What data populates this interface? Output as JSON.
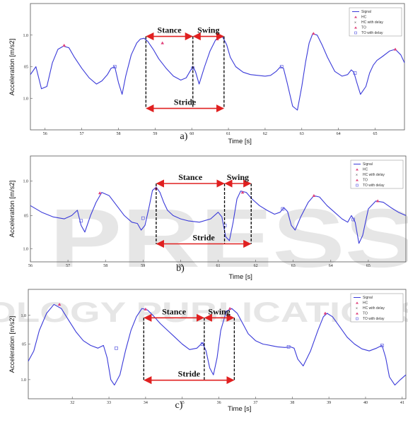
{
  "watermark": {
    "top": "PRESS",
    "bottom": "OLOGY PUBLICATIONS"
  },
  "chart_data": [
    {
      "type": "line",
      "panel_label": "a)",
      "xlabel": "Time [s]",
      "ylabel": "Acceleration [m/s2]",
      "xlim": [
        55.6,
        65.8
      ],
      "ylim": [
        0.93,
        1.09
      ],
      "xticks": [
        56,
        57,
        58,
        59,
        60,
        61,
        62,
        63,
        64,
        65
      ],
      "yticks": [
        {
          "v": 1.05,
          "t": "1.0"
        },
        {
          "v": 1.01,
          "t": "05"
        },
        {
          "v": 0.97,
          "t": "1.0"
        }
      ],
      "legend": [
        "Signal",
        "HC",
        "HC with delay",
        "TO",
        "TO with delay"
      ],
      "signal": {
        "x": [
          55.6,
          55.75,
          55.9,
          56.05,
          56.2,
          56.35,
          56.5,
          56.65,
          56.8,
          57.0,
          57.2,
          57.4,
          57.55,
          57.7,
          57.8,
          57.9,
          58.0,
          58.1,
          58.2,
          58.35,
          58.5,
          58.6,
          58.7,
          58.8,
          58.95,
          59.1,
          59.3,
          59.5,
          59.7,
          59.85,
          59.95,
          60.03,
          60.1,
          60.2,
          60.35,
          60.5,
          60.65,
          60.75,
          60.85,
          60.95,
          61.05,
          61.2,
          61.4,
          61.6,
          61.8,
          62.0,
          62.15,
          62.3,
          62.42,
          62.5,
          62.6,
          62.75,
          62.88,
          63.0,
          63.1,
          63.2,
          63.3,
          63.42,
          63.55,
          63.7,
          63.9,
          64.1,
          64.25,
          64.35,
          64.42,
          64.5,
          64.6,
          64.75,
          64.85,
          64.95,
          65.05,
          65.2,
          65.4,
          65.55,
          65.7,
          65.8
        ],
        "y": [
          1.0,
          1.01,
          0.982,
          0.985,
          1.015,
          1.032,
          1.036,
          1.034,
          1.022,
          1.008,
          0.996,
          0.988,
          0.992,
          1.0,
          1.008,
          1.01,
          0.99,
          0.975,
          0.998,
          1.025,
          1.04,
          1.045,
          1.046,
          1.042,
          1.032,
          1.02,
          1.008,
          0.998,
          0.993,
          0.996,
          1.004,
          1.01,
          1.004,
          0.988,
          1.01,
          1.03,
          1.044,
          1.048,
          1.047,
          1.038,
          1.022,
          1.01,
          1.003,
          1.0,
          0.999,
          0.998,
          0.999,
          1.004,
          1.01,
          1.008,
          0.99,
          0.96,
          0.955,
          0.985,
          1.015,
          1.04,
          1.052,
          1.05,
          1.038,
          1.022,
          1.004,
          0.998,
          1.0,
          1.006,
          1.003,
          0.99,
          0.975,
          0.985,
          1.002,
          1.012,
          1.018,
          1.023,
          1.03,
          1.032,
          1.025,
          1.015
        ]
      },
      "markers": {
        "hc": [
          [
            56.52,
            1.037
          ],
          [
            59.2,
            1.04
          ],
          [
            60.7,
            1.045
          ],
          [
            63.32,
            1.052
          ],
          [
            65.55,
            1.032
          ]
        ],
        "to": [
          [
            57.9,
            1.01
          ],
          [
            60.03,
            1.008
          ],
          [
            62.45,
            1.01
          ],
          [
            64.45,
            1.002
          ]
        ]
      },
      "annotations": {
        "stance": {
          "label": "Stance",
          "x1": 58.75,
          "x2": 60.03
        },
        "swing": {
          "label": "Swing",
          "x1": 60.03,
          "x2": 60.88
        },
        "stride": {
          "label": "Stride",
          "x1": 58.75,
          "x2": 60.88
        },
        "guides": [
          58.75,
          60.03,
          60.88
        ]
      }
    },
    {
      "type": "line",
      "panel_label": "b)",
      "xlabel": "Time [s]",
      "ylabel": "Acceleration [m/s2]",
      "xlim": [
        56.0,
        66.0
      ],
      "ylim": [
        0.93,
        1.09
      ],
      "xticks": [
        56,
        57,
        58,
        59,
        60,
        61,
        62,
        63,
        64,
        65
      ],
      "yticks": [
        {
          "v": 1.052,
          "t": "1.0"
        },
        {
          "v": 1.0,
          "t": "05"
        },
        {
          "v": 0.95,
          "t": "1.0"
        }
      ],
      "legend": [
        "Signal",
        "HC",
        "HC with delay",
        "TO",
        "TO with delay"
      ],
      "signal": {
        "x": [
          56.0,
          56.3,
          56.6,
          56.9,
          57.1,
          57.25,
          57.35,
          57.45,
          57.6,
          57.75,
          57.9,
          58.1,
          58.3,
          58.5,
          58.7,
          58.85,
          58.95,
          59.05,
          59.15,
          59.25,
          59.35,
          59.45,
          59.55,
          59.65,
          59.8,
          60.0,
          60.2,
          60.5,
          60.8,
          61.0,
          61.1,
          61.2,
          61.3,
          61.4,
          61.5,
          61.6,
          61.75,
          61.9,
          62.1,
          62.3,
          62.5,
          62.65,
          62.75,
          62.85,
          62.95,
          63.05,
          63.2,
          63.4,
          63.55,
          63.7,
          63.9,
          64.1,
          64.3,
          64.45,
          64.55,
          64.65,
          64.75,
          64.85,
          65.0,
          65.2,
          65.4,
          65.6,
          65.8,
          66.0
        ],
        "y": [
          1.015,
          1.005,
          0.998,
          0.995,
          1.0,
          1.008,
          0.985,
          0.975,
          1.0,
          1.02,
          1.035,
          1.03,
          1.015,
          1.0,
          0.99,
          0.988,
          0.978,
          0.985,
          1.01,
          1.038,
          1.043,
          1.035,
          1.02,
          1.008,
          1.0,
          0.995,
          0.992,
          0.99,
          0.995,
          1.005,
          0.998,
          0.968,
          0.962,
          0.99,
          1.025,
          1.037,
          1.035,
          1.025,
          1.015,
          1.008,
          1.002,
          1.005,
          1.012,
          1.006,
          0.985,
          0.978,
          0.998,
          1.02,
          1.03,
          1.028,
          1.015,
          1.005,
          0.995,
          0.99,
          1.0,
          0.99,
          0.958,
          0.97,
          1.01,
          1.022,
          1.02,
          1.012,
          1.005,
          1.0
        ]
      },
      "markers": {
        "hc": [
          [
            57.85,
            1.034
          ],
          [
            59.35,
            1.041
          ],
          [
            61.65,
            1.035
          ],
          [
            63.55,
            1.03
          ],
          [
            65.25,
            1.022
          ]
        ],
        "to": [
          [
            57.35,
            0.992
          ],
          [
            59.0,
            0.996
          ],
          [
            61.18,
            0.985
          ],
          [
            62.72,
            1.01
          ],
          [
            64.6,
            0.994
          ]
        ]
      },
      "annotations": {
        "stance": {
          "label": "Stance",
          "x1": 59.35,
          "x2": 61.17
        },
        "swing": {
          "label": "Swing",
          "x1": 61.17,
          "x2": 61.88
        },
        "stride": {
          "label": "Stride",
          "x1": 59.35,
          "x2": 61.88
        },
        "guides": [
          59.35,
          61.17,
          61.88
        ]
      }
    },
    {
      "type": "line",
      "panel_label": "c)",
      "xlabel": "Time [s]",
      "ylabel": "Acceleration [m/s2]",
      "xlim": [
        30.8,
        41.1
      ],
      "ylim": [
        0.93,
        1.09
      ],
      "xticks": [
        32,
        33,
        34,
        35,
        36,
        37,
        38,
        39,
        40,
        41
      ],
      "yticks": [
        {
          "v": 1.052,
          "t": "1.0"
        },
        {
          "v": 1.01,
          "t": "05"
        },
        {
          "v": 0.958,
          "t": "1.0"
        }
      ],
      "legend": [
        "Signal",
        "HC",
        "HC with delay",
        "TO",
        "TO with delay"
      ],
      "signal": {
        "x": [
          30.8,
          30.95,
          31.1,
          31.3,
          31.5,
          31.7,
          31.9,
          32.1,
          32.3,
          32.5,
          32.7,
          32.85,
          32.95,
          33.05,
          33.15,
          33.3,
          33.45,
          33.6,
          33.75,
          33.9,
          34.05,
          34.2,
          34.4,
          34.6,
          34.8,
          35.0,
          35.2,
          35.4,
          35.55,
          35.65,
          35.75,
          35.85,
          35.95,
          36.05,
          36.2,
          36.35,
          36.5,
          36.65,
          36.8,
          37.0,
          37.2,
          37.4,
          37.6,
          37.8,
          37.95,
          38.05,
          38.15,
          38.3,
          38.5,
          38.7,
          38.85,
          38.95,
          39.1,
          39.3,
          39.5,
          39.7,
          39.9,
          40.1,
          40.3,
          40.45,
          40.55,
          40.65,
          40.8,
          40.95,
          41.1
        ],
        "y": [
          0.985,
          1.0,
          1.03,
          1.055,
          1.068,
          1.062,
          1.045,
          1.028,
          1.015,
          1.008,
          1.004,
          1.008,
          0.99,
          0.958,
          0.95,
          0.965,
          1.0,
          1.03,
          1.05,
          1.062,
          1.06,
          1.052,
          1.04,
          1.03,
          1.02,
          1.01,
          1.002,
          1.004,
          1.012,
          1.0,
          0.975,
          0.965,
          0.99,
          1.03,
          1.058,
          1.062,
          1.055,
          1.04,
          1.025,
          1.015,
          1.01,
          1.008,
          1.006,
          1.005,
          1.006,
          1.004,
          0.988,
          0.978,
          1.0,
          1.03,
          1.05,
          1.055,
          1.05,
          1.035,
          1.02,
          1.01,
          1.003,
          1.0,
          1.004,
          1.008,
          0.99,
          0.962,
          0.95,
          0.958,
          0.965
        ]
      },
      "markers": {
        "hc": [
          [
            31.65,
            1.068
          ],
          [
            34.0,
            1.061
          ],
          [
            36.3,
            1.062
          ],
          [
            38.9,
            1.055
          ]
        ],
        "to": [
          [
            33.2,
            1.004
          ],
          [
            35.55,
            1.01
          ],
          [
            37.9,
            1.006
          ],
          [
            40.45,
            1.008
          ]
        ]
      },
      "annotations": {
        "stance": {
          "label": "Stance",
          "x1": 33.95,
          "x2": 35.6
        },
        "swing": {
          "label": "Swing",
          "x1": 35.6,
          "x2": 36.42
        },
        "stride": {
          "label": "Stride",
          "x1": 33.95,
          "x2": 36.42
        },
        "guides": [
          33.95,
          35.6,
          36.42
        ]
      }
    }
  ],
  "colors": {
    "signal": "#3a3ad9",
    "arrow": "#e02020",
    "hc": "#e0407a",
    "to": "#5a5ae0",
    "guide": "#000000"
  }
}
